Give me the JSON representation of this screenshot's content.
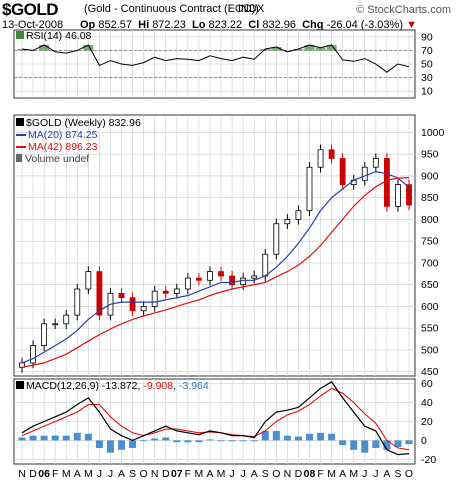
{
  "header": {
    "symbol": "$GOLD",
    "description": "(Gold - Continuous Contract (EOD))",
    "exchange": "INDX",
    "date": "13-Oct-2008",
    "open_label": "Op",
    "open": "852.57",
    "high_label": "Hi",
    "high": "872.23",
    "low_label": "Lo",
    "low": "823.22",
    "close_label": "Cl",
    "close": "832.96",
    "change_label": "Chg",
    "change": "-26.04 (-3.03%)",
    "change_marker": "▼",
    "brand": "© StockCharts.com"
  },
  "colors": {
    "price_up": "#000000",
    "price_down": "#cc0000",
    "ma20": "#2a3fa8",
    "ma42": "#dd1111",
    "macd_line": "#000000",
    "signal_line": "#dd1111",
    "histogram": "#4a8fd0",
    "rsi_fill": "#3a8a3a",
    "grid": "#cccccc"
  },
  "chart_data": [
    {
      "type": "line",
      "panel": "rsi",
      "title": "RSI(14) 46.08",
      "label": "RSI(14)",
      "value": "46.08",
      "yticks": [
        "90",
        "70",
        "50",
        "30",
        "10"
      ],
      "ylim": [
        0,
        100
      ],
      "reference_lines": [
        70,
        30
      ],
      "x": [
        "2005-11",
        "2005-12",
        "2006-01",
        "2006-02",
        "2006-03",
        "2006-04",
        "2006-05",
        "2006-06",
        "2006-07",
        "2006-08",
        "2006-09",
        "2006-10",
        "2006-11",
        "2006-12",
        "2007-01",
        "2007-02",
        "2007-03",
        "2007-04",
        "2007-05",
        "2007-06",
        "2007-07",
        "2007-08",
        "2007-09",
        "2007-10",
        "2007-11",
        "2007-12",
        "2008-01",
        "2008-02",
        "2008-03",
        "2008-04",
        "2008-05",
        "2008-06",
        "2008-07",
        "2008-08",
        "2008-09",
        "2008-10"
      ],
      "values": [
        72,
        70,
        78,
        68,
        66,
        70,
        78,
        48,
        55,
        50,
        48,
        52,
        60,
        55,
        58,
        57,
        55,
        62,
        58,
        55,
        60,
        57,
        72,
        75,
        68,
        72,
        78,
        74,
        78,
        56,
        54,
        58,
        50,
        38,
        50,
        46
      ]
    },
    {
      "type": "candlestick",
      "panel": "price",
      "title": "$GOLD (Weekly) 832.96",
      "series_label": "$GOLD (Weekly)",
      "last_value": "832.96",
      "legend": [
        {
          "label": "MA(20)",
          "value": "874.25",
          "color": "#2a3fa8"
        },
        {
          "label": "MA(42)",
          "value": "896.23",
          "color": "#dd1111"
        },
        {
          "label": "Volume undef",
          "value": "",
          "color": "#555555"
        }
      ],
      "yticks": [
        "1000",
        "950",
        "900",
        "850",
        "800",
        "750",
        "700",
        "650",
        "600",
        "550",
        "500",
        "450"
      ],
      "ylim": [
        440,
        1040
      ],
      "x": [
        "2005-11",
        "2005-12",
        "2006-01",
        "2006-02",
        "2006-03",
        "2006-04",
        "2006-05",
        "2006-06",
        "2006-07",
        "2006-08",
        "2006-09",
        "2006-10",
        "2006-11",
        "2006-12",
        "2007-01",
        "2007-02",
        "2007-03",
        "2007-04",
        "2007-05",
        "2007-06",
        "2007-07",
        "2007-08",
        "2007-09",
        "2007-10",
        "2007-11",
        "2007-12",
        "2008-01",
        "2008-02",
        "2008-03",
        "2008-04",
        "2008-05",
        "2008-06",
        "2008-07",
        "2008-08",
        "2008-09",
        "2008-10"
      ],
      "close": [
        470,
        510,
        560,
        560,
        580,
        640,
        680,
        580,
        630,
        620,
        590,
        600,
        635,
        630,
        640,
        665,
        660,
        680,
        670,
        650,
        665,
        670,
        720,
        790,
        800,
        820,
        920,
        960,
        940,
        880,
        890,
        920,
        940,
        830,
        880,
        833
      ],
      "ma20": [
        470,
        480,
        495,
        510,
        525,
        545,
        570,
        590,
        605,
        610,
        610,
        610,
        610,
        615,
        620,
        625,
        635,
        645,
        655,
        655,
        660,
        660,
        670,
        690,
        715,
        745,
        780,
        820,
        850,
        870,
        890,
        900,
        910,
        905,
        895,
        874
      ],
      "ma42": [
        460,
        465,
        470,
        480,
        490,
        505,
        520,
        535,
        548,
        560,
        570,
        578,
        585,
        592,
        600,
        608,
        615,
        625,
        633,
        640,
        645,
        650,
        655,
        668,
        680,
        695,
        715,
        740,
        770,
        800,
        830,
        855,
        875,
        890,
        895,
        896
      ]
    },
    {
      "type": "line",
      "panel": "macd",
      "title": "MACD(12,26,9) -13.872, -9.908, -3.964",
      "label": "MACD(12,26,9)",
      "values_text": [
        "-13.872",
        "-9.908",
        "-3.964"
      ],
      "value_colors": [
        "#000000",
        "#dd1111",
        "#2a7fb8"
      ],
      "yticks": [
        "60",
        "40",
        "20",
        "0",
        "-20"
      ],
      "ylim": [
        -25,
        65
      ],
      "x": [
        "2005-11",
        "2005-12",
        "2006-01",
        "2006-02",
        "2006-03",
        "2006-04",
        "2006-05",
        "2006-06",
        "2006-07",
        "2006-08",
        "2006-09",
        "2006-10",
        "2006-11",
        "2006-12",
        "2007-01",
        "2007-02",
        "2007-03",
        "2007-04",
        "2007-05",
        "2007-06",
        "2007-07",
        "2007-08",
        "2007-09",
        "2007-10",
        "2007-11",
        "2007-12",
        "2008-01",
        "2008-02",
        "2008-03",
        "2008-04",
        "2008-05",
        "2008-06",
        "2008-07",
        "2008-08",
        "2008-09",
        "2008-10"
      ],
      "macd": [
        8,
        15,
        20,
        25,
        30,
        38,
        45,
        30,
        12,
        5,
        0,
        5,
        10,
        15,
        10,
        8,
        6,
        10,
        8,
        5,
        5,
        3,
        20,
        30,
        32,
        35,
        45,
        55,
        62,
        45,
        30,
        15,
        10,
        -10,
        -15,
        -14
      ],
      "signal": [
        5,
        10,
        15,
        20,
        25,
        30,
        38,
        38,
        25,
        15,
        8,
        5,
        8,
        12,
        12,
        10,
        8,
        9,
        8,
        6,
        5,
        4,
        10,
        20,
        27,
        31,
        38,
        47,
        55,
        50,
        40,
        28,
        18,
        0,
        -8,
        -10
      ],
      "histogram": [
        3,
        5,
        5,
        5,
        5,
        8,
        7,
        -8,
        -13,
        -10,
        -8,
        0,
        2,
        3,
        -2,
        -2,
        -2,
        1,
        0,
        -1,
        0,
        -1,
        10,
        10,
        5,
        4,
        7,
        8,
        7,
        -5,
        -10,
        -13,
        -8,
        -10,
        -7,
        -4
      ]
    }
  ],
  "x_axis_labels": [
    "N",
    "D",
    "06",
    "F",
    "M",
    "A",
    "M",
    "J",
    "J",
    "A",
    "S",
    "O",
    "N",
    "D",
    "07",
    "F",
    "M",
    "A",
    "M",
    "J",
    "J",
    "A",
    "S",
    "O",
    "N",
    "D",
    "08",
    "F",
    "M",
    "A",
    "M",
    "J",
    "J",
    "A",
    "S",
    "O"
  ]
}
